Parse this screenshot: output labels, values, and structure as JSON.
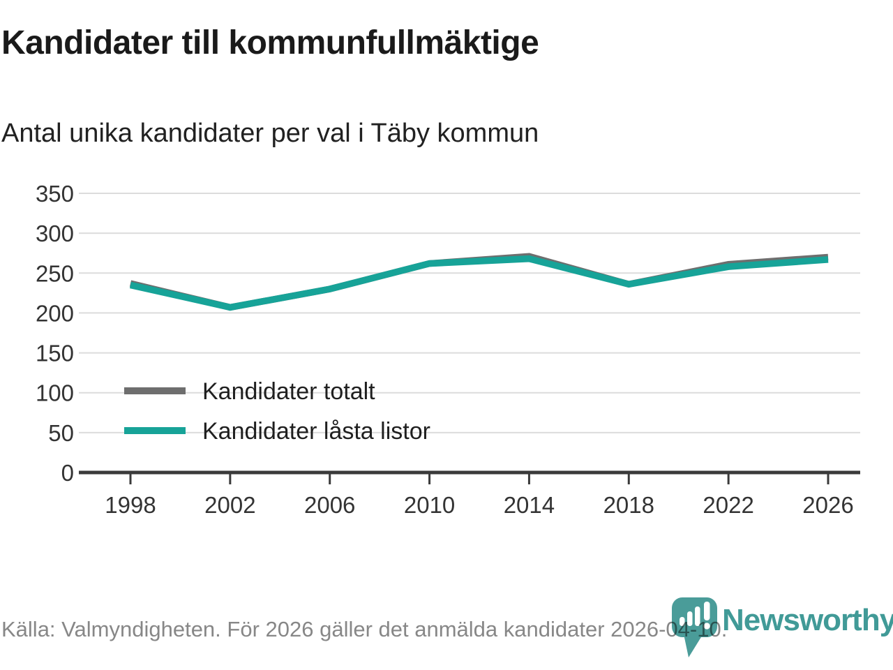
{
  "header": {
    "title": "Kandidater till kommunfullmäktige",
    "subtitle": "Antal unika kandidater per val i Täby kommun"
  },
  "chart_data": {
    "type": "line",
    "x": [
      1998,
      2002,
      2006,
      2010,
      2014,
      2018,
      2022,
      2026
    ],
    "series": [
      {
        "name": "Kandidater totalt",
        "color": "#6e6e6e",
        "values": [
          237,
          207,
          230,
          262,
          271,
          236,
          261,
          270
        ]
      },
      {
        "name": "Kandidater låsta listor",
        "color": "#17a398",
        "values": [
          235,
          207,
          230,
          262,
          268,
          236,
          258,
          267
        ]
      }
    ],
    "title": "Kandidater till kommunfullmäktige",
    "xlabel": "",
    "ylabel": "",
    "ylim": [
      0,
      350
    ],
    "ytick_step": 50,
    "grid": true,
    "legend_position": "inside-left"
  },
  "footer": {
    "source": "Källa: Valmyndigheten. För 2026 gäller det anmälda kandidater 2026-04-10."
  },
  "branding": {
    "logo_text": "Newsworthy",
    "logo_icon": "map-pin-bar-chart-icon"
  },
  "colors": {
    "accent_teal": "#17a398",
    "series_gray": "#6e6e6e",
    "gridline": "#dcdcdc",
    "axis": "#3a3a3a",
    "logo_teal": "#4a9c99",
    "source_text": "#878787"
  }
}
